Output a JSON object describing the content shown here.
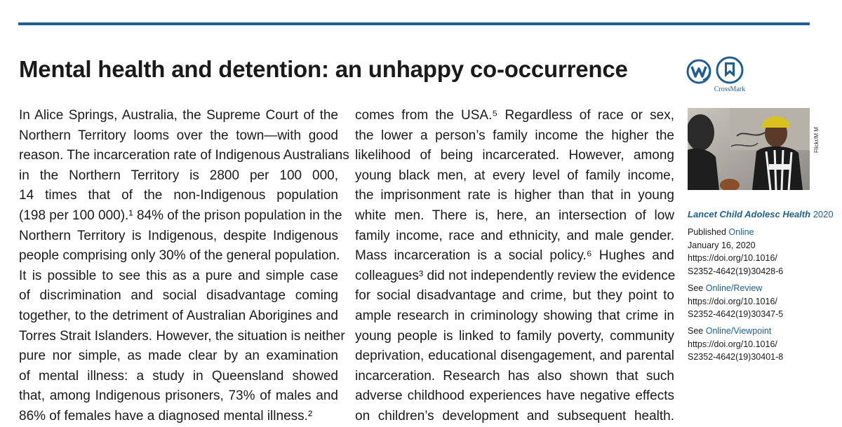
{
  "article": {
    "title": "Mental health and detention: an unhappy co-occurrence"
  },
  "logos": {
    "w_icon": "wiley-w-icon",
    "crossmark_icon": "crossmark-icon",
    "crossmark_label": "CrossMark"
  },
  "photo": {
    "credit": "Flickr/M M"
  },
  "column1": {
    "lines": [
      "In Alice Springs, Australia, the Supreme Court of the",
      "Northern Territory looms over the town—with good",
      "reason. The incarceration rate of Indigenous Australians",
      "in the Northern Territory is 2800 per 100 000,",
      "14 times that of the non-Indigenous population",
      "(198 per 100 000).¹ 84% of the prison population in the",
      "Northern Territory is Indigenous, despite Indigenous",
      "people comprising only 30% of the general population.",
      "It is possible to see this as a pure and simple case",
      "of discrimination and social disadvantage coming",
      "together, to the detriment of Australian Aborigines and",
      "Torres Strait Islanders. However, the situation is neither",
      "pure nor simple, as made clear by an examination",
      "of mental illness: a study in Queensland showed",
      "that, among Indigenous prisoners, 73% of males and",
      "86% of females have a diagnosed mental illness.²"
    ]
  },
  "column2": {
    "lines": [
      "comes from the USA.⁵ Regardless of race or sex,",
      "the lower a person’s family income the higher the",
      "likelihood of being incarcerated. However, among",
      "young black men, at every level of family income,",
      "the imprisonment rate is higher than that in young",
      "white men. There is, here, an intersection of low",
      "family income, race and ethnicity, and male gender.",
      "Mass incarceration is a social policy.⁶ Hughes and",
      "colleagues³ did not independently review the evidence",
      "for social disadvantage and crime, but they point to",
      "ample research in criminology showing that crime in",
      "young people is linked to family poverty, community",
      "deprivation, educational disengagement, and parental",
      "incarceration. Research has also shown that such",
      "adverse childhood experiences have negative effects",
      "on children’s development and subsequent health."
    ]
  },
  "sidebar": {
    "journal": "Lancet Child Adolesc Health",
    "year": "2020",
    "published_label": "Published",
    "online_label": "Online",
    "date": "January 16, 2020",
    "doi_prefix": "https://doi.org/10.1016/",
    "doi_suffix": "S2352-4642(19)30428-6",
    "see1_label": "See",
    "see1_link": "Online/Review",
    "see1_doi_prefix": "https://doi.org/10.1016/",
    "see1_doi_suffix": "S2352-4642(19)30347-5",
    "see2_label": "See",
    "see2_link": "Online/Viewpoint",
    "see2_doi_prefix": "https://doi.org/10.1016/",
    "see2_doi_suffix": "S2352-4642(19)30401-8"
  },
  "colors": {
    "accent": "#1f5f8f",
    "text": "#1a1a1a"
  }
}
